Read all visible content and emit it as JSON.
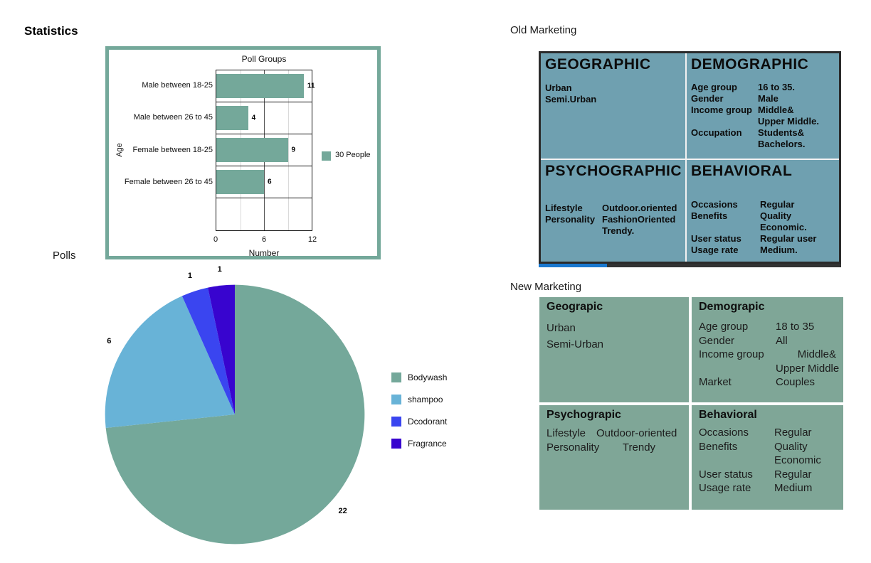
{
  "page": {
    "stats_title": "Statistics",
    "polls_title": "Polls"
  },
  "chart_data": [
    {
      "id": "poll-groups-bar",
      "type": "bar",
      "orientation": "horizontal",
      "title": "Poll Groups",
      "xlabel": "Number",
      "ylabel": "Age",
      "xlim": [
        0,
        12
      ],
      "xticks": [
        0,
        6,
        12
      ],
      "grid": "vertical, minor at 3 and 9",
      "categories": [
        "Male between 18-25",
        "Male between 26 to 45",
        "Female between 18-25",
        "Female between 26 to 45"
      ],
      "values": [
        11,
        4,
        9,
        6
      ],
      "bar_color": "#74a89a",
      "legend": [
        {
          "label": "30 People",
          "color": "#74a89a"
        }
      ],
      "legend_position": "right",
      "frame_color": "#74a89a"
    },
    {
      "id": "polls-pie",
      "type": "pie",
      "title": "Polls",
      "total": 30,
      "start_angle": "12 o'clock",
      "direction": "clockwise",
      "legend_position": "right",
      "slices": [
        {
          "label": "Bodywash",
          "value": 22,
          "color": "#74a89a"
        },
        {
          "label": "shampoo",
          "value": 6,
          "color": "#68b3d7"
        },
        {
          "label": "Dcodorant",
          "value": 1,
          "color": "#3a45f0"
        },
        {
          "label": "Fragrance",
          "value": 1,
          "color": "#3804cf"
        }
      ]
    }
  ],
  "old_marketing": {
    "title": "Old Marketing",
    "bg_color": "#6fa0b0",
    "quadrants": [
      {
        "header": "GEOGRAPHIC",
        "lines": [
          "Urban",
          "Semi.Urban"
        ]
      },
      {
        "header": "DEMOGRAPHIC",
        "rows": [
          {
            "label": "Age group",
            "value": "16 to 35."
          },
          {
            "label": "Gender",
            "value": "Male"
          },
          {
            "label": "Income group",
            "value": "Middle&"
          },
          {
            "label": "",
            "value": "Upper Middle."
          },
          {
            "label": "Occupation",
            "value": "Students&"
          },
          {
            "label": "",
            "value": "Bachelors."
          }
        ]
      },
      {
        "header": "PSYCHOGRAPHIC",
        "rows": [
          {
            "label": "Lifestyle",
            "value": "Outdoor.oriented"
          },
          {
            "label": "Personality",
            "value": "FashionOriented"
          },
          {
            "label": "",
            "value": "Trendy."
          }
        ]
      },
      {
        "header": "BEHAVIORAL",
        "rows": [
          {
            "label": "Occasions",
            "value": "Regular"
          },
          {
            "label": "Benefits",
            "value": "Quality"
          },
          {
            "label": "",
            "value": "Economic."
          },
          {
            "label": "User status",
            "value": "Regular user"
          },
          {
            "label": "Usage rate",
            "value": "Medium."
          }
        ]
      }
    ]
  },
  "new_marketing": {
    "title": "New Marketing",
    "bg_color": "#7fa697",
    "quadrants": [
      {
        "header": "Geograpic",
        "lines": [
          "Urban",
          "Semi-Urban"
        ]
      },
      {
        "header": "Demograpic",
        "rows": [
          {
            "label": "Age group",
            "value": "18 to 35"
          },
          {
            "label": "Gender",
            "value": "All"
          },
          {
            "label": "Income group",
            "value": "Middle&",
            "align": "right"
          },
          {
            "label": "",
            "value": "Upper Middle",
            "align": "right"
          },
          {
            "label": "Market",
            "value": "Couples"
          }
        ]
      },
      {
        "header": "Psychograpic",
        "rows": [
          {
            "label": "Lifestyle",
            "value": "Outdoor-oriented"
          },
          {
            "label": "Personality",
            "value": "Trendy",
            "align": "center"
          }
        ]
      },
      {
        "header": "Behavioral",
        "rows": [
          {
            "label": "Occasions",
            "value": "Regular"
          },
          {
            "label": "Benefits",
            "value": "Quality"
          },
          {
            "label": "",
            "value": "Economic"
          },
          {
            "label": "User status",
            "value": "Regular"
          },
          {
            "label": "Usage rate",
            "value": "Medium"
          }
        ]
      }
    ]
  }
}
